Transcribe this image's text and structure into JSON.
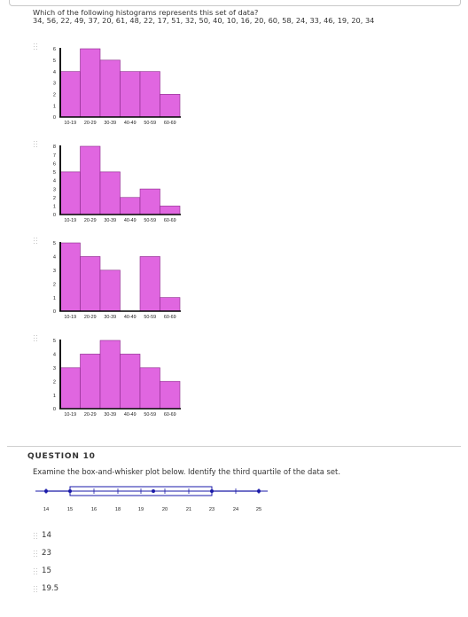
{
  "question9": {
    "prompt": "Which of the following histograms represents this set of data?",
    "data_line": "34, 56, 22, 49, 37, 20, 61, 48, 22, 17, 51, 32, 50, 40, 10, 16, 20, 60, 58, 24, 33, 46, 19, 20, 34"
  },
  "colors": {
    "bar_fill": "#e066e0",
    "bar_stroke": "#8a2a8a",
    "plot_blue": "#1a1aa8",
    "text": "#333333"
  },
  "chart_data": [
    {
      "type": "bar",
      "categories": [
        "10-19",
        "20-29",
        "30-39",
        "40-49",
        "50-59",
        "60-69"
      ],
      "values": [
        4,
        6,
        5,
        4,
        4,
        2
      ],
      "y_ticks": [
        "0",
        "1",
        "2",
        "3",
        "4",
        "5",
        "6"
      ],
      "ylim": [
        0,
        6
      ]
    },
    {
      "type": "bar",
      "categories": [
        "10-19",
        "20-29",
        "30-39",
        "40-49",
        "50-59",
        "60-69"
      ],
      "values": [
        5,
        8,
        5,
        2,
        3,
        1
      ],
      "y_ticks": [
        "0",
        "1",
        "2",
        "3",
        "4",
        "5",
        "6",
        "7",
        "8"
      ],
      "ylim": [
        0,
        8
      ]
    },
    {
      "type": "bar",
      "categories": [
        "10-19",
        "20-29",
        "30-39",
        "40-49",
        "50-59",
        "60-69"
      ],
      "values": [
        5,
        4,
        3,
        0,
        4,
        1
      ],
      "y_ticks": [
        "0",
        "1",
        "2",
        "3",
        "4",
        "5"
      ],
      "ylim": [
        0,
        5
      ]
    },
    {
      "type": "bar",
      "categories": [
        "10-19",
        "20-29",
        "30-39",
        "40-49",
        "50-59",
        "60-69"
      ],
      "values": [
        3,
        4,
        5,
        4,
        3,
        2
      ],
      "y_ticks": [
        "0",
        "1",
        "2",
        "3",
        "4",
        "5"
      ],
      "ylim": [
        0,
        5
      ]
    }
  ],
  "question10": {
    "label": "QUESTION 10",
    "prompt": "Examine the box-and-whisker plot below. Identify the third quartile of the data set.",
    "box_plot": {
      "tick_labels": [
        "14",
        "15",
        "16",
        "18",
        "19",
        "20",
        "21",
        "23",
        "24",
        "25"
      ],
      "min": "14",
      "q1": "15",
      "median": "19.5",
      "q3": "23",
      "max": "25"
    },
    "choices": [
      "14",
      "23",
      "15",
      "19.5"
    ]
  }
}
